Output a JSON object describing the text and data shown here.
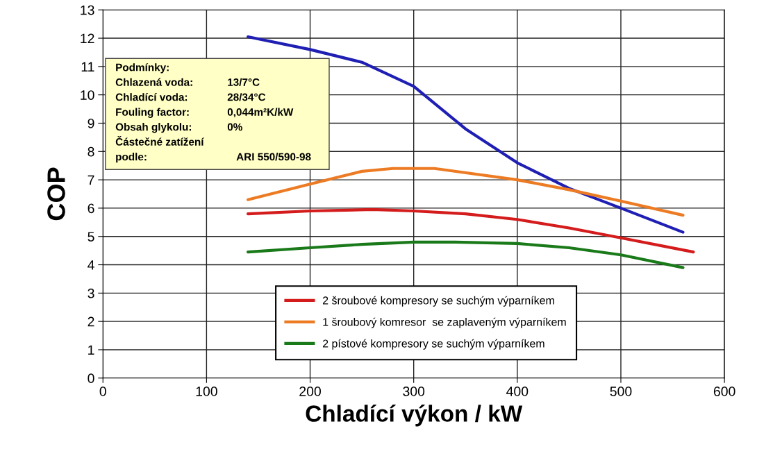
{
  "chart_data": {
    "type": "line",
    "xlabel": "Chladící výkon / kW",
    "ylabel": "COP",
    "xlim": [
      0,
      600
    ],
    "xticks": [
      0,
      100,
      200,
      300,
      400,
      500,
      600
    ],
    "ylim": [
      0,
      13
    ],
    "yticks": [
      0,
      1,
      2,
      3,
      4,
      5,
      6,
      7,
      8,
      9,
      10,
      11,
      12,
      13
    ],
    "grid": true,
    "legend": "bottom",
    "marker": "none",
    "line_style": "solid",
    "series": [
      {
        "color": "#1f1fb4",
        "x": [
          140,
          200,
          250,
          300,
          350,
          400,
          450,
          500,
          560
        ],
        "values": [
          12.05,
          11.6,
          11.15,
          10.3,
          8.8,
          7.6,
          6.7,
          6.0,
          5.15
        ]
      },
      {
        "name": "2 šroubové kompresory se suchým výparníkem",
        "color": "#d41c1c",
        "x": [
          140,
          200,
          260,
          300,
          350,
          400,
          450,
          500,
          570
        ],
        "values": [
          5.8,
          5.9,
          5.95,
          5.9,
          5.8,
          5.6,
          5.3,
          4.95,
          4.45
        ]
      },
      {
        "name": "1 šroubový komresor  se zaplaveným výparníkem",
        "color": "#ec7b23",
        "x": [
          140,
          200,
          250,
          280,
          320,
          400,
          450,
          500,
          560
        ],
        "values": [
          6.3,
          6.85,
          7.3,
          7.4,
          7.4,
          7.0,
          6.65,
          6.25,
          5.75
        ]
      },
      {
        "name": "2 pístové kompresory se suchým výparníkem",
        "color": "#1a7a1a",
        "x": [
          140,
          200,
          250,
          300,
          340,
          400,
          450,
          500,
          560
        ],
        "values": [
          4.45,
          4.6,
          4.72,
          4.8,
          4.8,
          4.75,
          4.6,
          4.35,
          3.9
        ]
      }
    ],
    "annotations": [
      "Podmínky:",
      "Chlazená voda:\t13/7°C",
      "Chladící voda:\t28/34°C",
      "Fouling factor:\t0,044m²K/kW",
      "Obsah glykolu:\t0%",
      "Částečné zatížení",
      "podle:\tARI 550/590-98"
    ]
  }
}
